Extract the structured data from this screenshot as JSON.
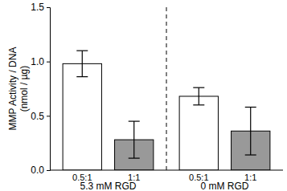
{
  "chart_data": {
    "type": "bar",
    "ylabel": "MMP Activity / DNA\n(nmol / µg)",
    "categories": [
      "0.5:1",
      "1:1",
      "0.5:1",
      "1:1"
    ],
    "group_labels": [
      "5.3 mM RGD",
      "0 mM RGD"
    ],
    "values": [
      0.98,
      0.28,
      0.68,
      0.36
    ],
    "errors": [
      0.12,
      0.17,
      0.08,
      0.22
    ],
    "colors": [
      "#ffffff",
      "#999999",
      "#ffffff",
      "#999999"
    ],
    "ylim": [
      0,
      1.5
    ],
    "yticks": [
      {
        "value": 0,
        "label": "0.0"
      },
      {
        "value": 0.5,
        "label": "0.5"
      },
      {
        "value": 1,
        "label": "1.0"
      },
      {
        "value": 1.5,
        "label": "1.5"
      }
    ]
  }
}
